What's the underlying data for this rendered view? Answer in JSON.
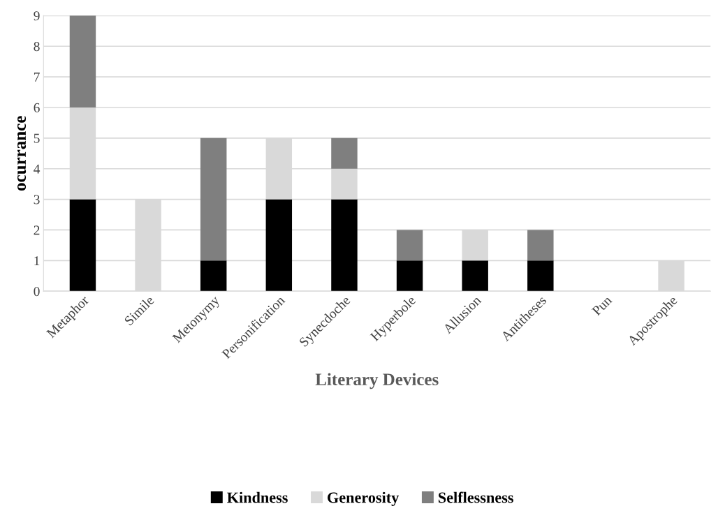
{
  "chart_data": {
    "type": "bar",
    "stacked": true,
    "xlabel": "Literary Devices",
    "ylabel": "ocurrance",
    "categories": [
      "Metaphor",
      "Simile",
      "Metonymy",
      "Personification",
      "Synecdoche",
      "Hyperbole",
      "Allusion",
      "Antitheses",
      "Pun",
      "Apostrophe"
    ],
    "series": [
      {
        "name": "Kindness",
        "color": "#000000",
        "values": [
          3,
          0,
          1,
          3,
          3,
          1,
          1,
          1,
          0,
          0
        ]
      },
      {
        "name": "Generosity",
        "color": "#d9d9d9",
        "values": [
          3,
          3,
          0,
          2,
          1,
          0,
          1,
          0,
          0,
          1
        ]
      },
      {
        "name": "Selflessness",
        "color": "#7f7f7f",
        "values": [
          3,
          0,
          4,
          0,
          1,
          1,
          0,
          1,
          0,
          0
        ]
      }
    ],
    "ylim": [
      0,
      9
    ],
    "yticks": [
      0,
      1,
      2,
      3,
      4,
      5,
      6,
      7,
      8,
      9
    ],
    "grid": "y",
    "legend": "bottom"
  }
}
